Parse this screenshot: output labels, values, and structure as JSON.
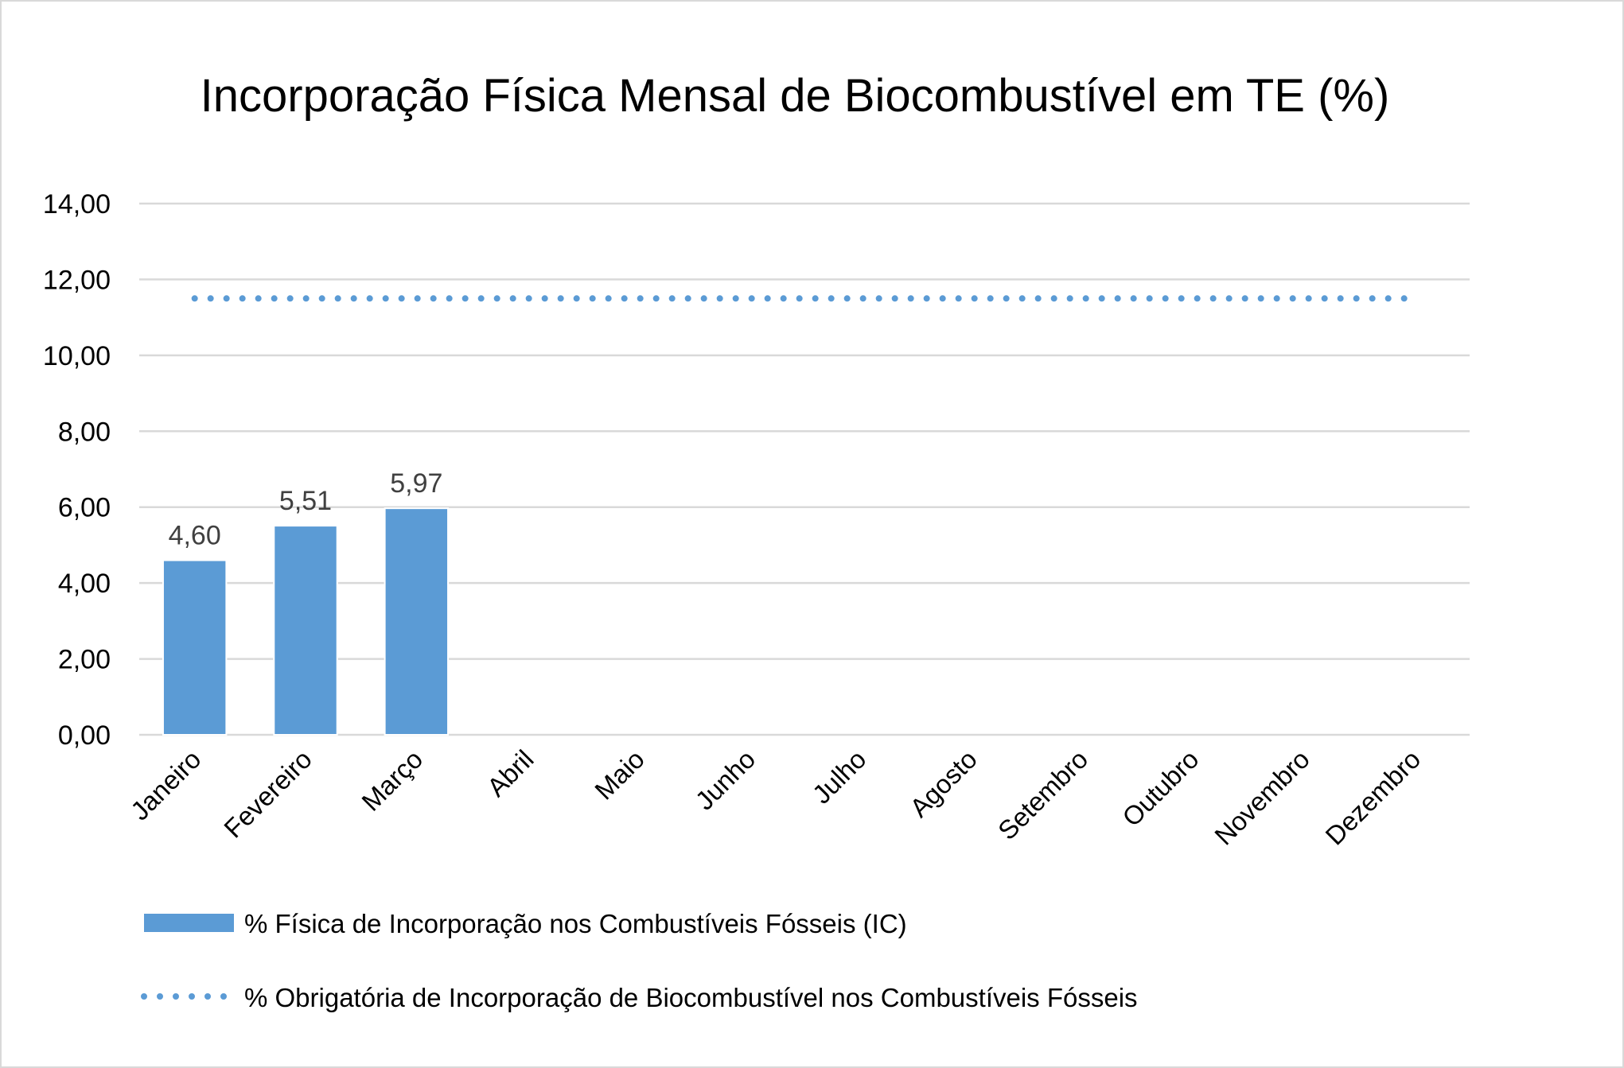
{
  "chart_data": {
    "type": "bar",
    "title": "Incorporação Física Mensal de Biocombustível em TE (%)",
    "xlabel": "",
    "ylabel": "",
    "categories": [
      "Janeiro",
      "Fevereiro",
      "Março",
      "Abril",
      "Maio",
      "Junho",
      "Julho",
      "Agosto",
      "Setembro",
      "Outubro",
      "Novembro",
      "Dezembro"
    ],
    "ylim": [
      0,
      14
    ],
    "yticks": [
      0,
      2,
      4,
      6,
      8,
      10,
      12,
      14
    ],
    "ytick_labels": [
      "0,00",
      "2,00",
      "4,00",
      "6,00",
      "8,00",
      "10,00",
      "12,00",
      "14,00"
    ],
    "grid": true,
    "legend_position": "bottom",
    "series": [
      {
        "name": "% Física de Incorporação nos Combustíveis Fósseis (IC)",
        "type": "bar",
        "color": "#5b9bd5",
        "values": [
          4.6,
          5.51,
          5.97,
          null,
          null,
          null,
          null,
          null,
          null,
          null,
          null,
          null
        ],
        "data_labels": [
          "4,60",
          "5,51",
          "5,97",
          "",
          "",
          "",
          "",
          "",
          "",
          "",
          "",
          ""
        ]
      },
      {
        "name": "% Obrigatória de Incorporação de Biocombustível nos Combustíveis Fósseis",
        "type": "line",
        "style": "dotted",
        "color": "#5b9bd5",
        "values": [
          11.5,
          11.5,
          11.5,
          11.5,
          11.5,
          11.5,
          11.5,
          11.5,
          11.5,
          11.5,
          11.5,
          11.5
        ]
      }
    ]
  }
}
